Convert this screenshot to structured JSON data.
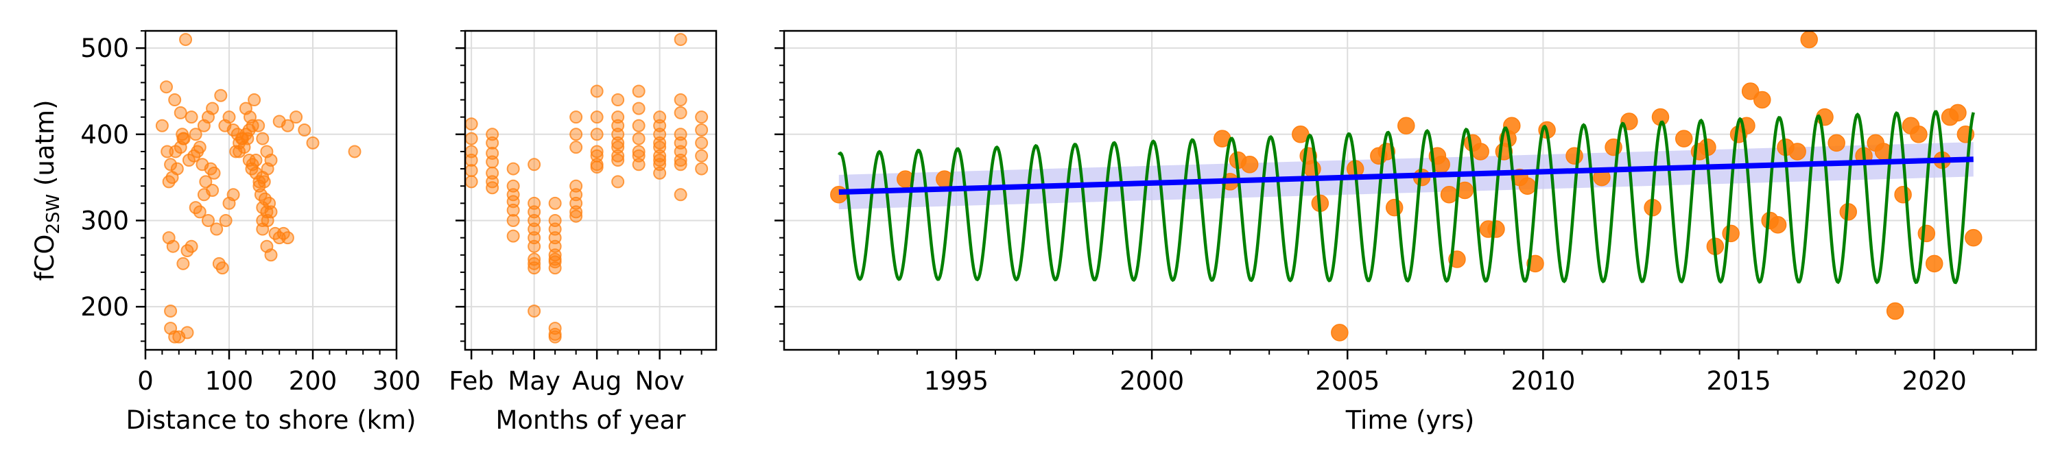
{
  "colors": {
    "observations": "#ff7f0e",
    "trend_line": "#0000ff",
    "trend_band": "#c8c8f5",
    "seasonal_fit": "#008000",
    "grid": "#dddddd",
    "axes": "#000000"
  },
  "chart_data": [
    {
      "type": "scatter",
      "xlabel": "Distance to shore (km)",
      "ylabel": {
        "main": "fCO",
        "sub": "2SW",
        "unit": " (uatm)"
      },
      "xlim": [
        0,
        300
      ],
      "ylim": [
        150,
        520
      ],
      "xticks": [
        0,
        100,
        200,
        300
      ],
      "yticks": [
        200,
        300,
        400,
        500
      ],
      "grid": true,
      "series": [
        {
          "x": [
            48,
            25,
            35,
            42,
            20,
            26,
            30,
            32,
            28,
            45,
            55,
            60,
            65,
            70,
            75,
            80,
            90,
            95,
            100,
            105,
            110,
            115,
            120,
            125,
            130,
            135,
            140,
            145,
            150,
            160,
            170,
            180,
            190,
            200,
            250,
            30,
            50,
            60,
            65,
            70,
            75,
            80,
            85,
            88,
            92,
            96,
            100,
            105,
            112,
            118,
            122,
            127,
            132,
            136,
            140,
            143,
            146,
            150,
            36,
            38,
            42,
            44,
            46,
            52,
            58,
            62,
            68,
            72,
            78,
            82,
            28,
            33,
            140,
            145,
            150,
            155,
            160,
            165,
            170,
            30,
            35,
            40,
            45,
            50,
            55,
            140,
            145,
            148,
            138,
            142,
            146,
            124,
            128,
            132,
            136,
            140,
            108,
            112,
            116,
            120,
            124,
            128
          ],
          "y": [
            510,
            455,
            440,
            425,
            410,
            380,
            365,
            350,
            345,
            395,
            420,
            400,
            385,
            410,
            420,
            430,
            445,
            410,
            420,
            405,
            400,
            395,
            430,
            420,
            440,
            410,
            395,
            380,
            370,
            415,
            410,
            420,
            405,
            390,
            380,
            195,
            170,
            315,
            310,
            330,
            300,
            335,
            290,
            250,
            245,
            300,
            320,
            330,
            380,
            385,
            395,
            360,
            370,
            345,
            350,
            325,
            300,
            310,
            380,
            360,
            385,
            400,
            395,
            370,
            375,
            380,
            365,
            345,
            360,
            355,
            280,
            270,
            290,
            270,
            260,
            285,
            280,
            285,
            280,
            175,
            165,
            165,
            250,
            265,
            270,
            300,
            310,
            320,
            330,
            345,
            360,
            370,
            365,
            355,
            340,
            315,
            380,
            390,
            395,
            400,
            405,
            410
          ]
        }
      ]
    },
    {
      "type": "scatter",
      "xlabel": "Months of year",
      "xlim": [
        0.7,
        12.7
      ],
      "ylim": [
        150,
        520
      ],
      "xticks": [
        1,
        4,
        7,
        10
      ],
      "xticklabels": [
        "Feb",
        "May",
        "Aug",
        "Nov"
      ],
      "yticks": [
        200,
        300,
        400,
        500
      ],
      "grid": true,
      "series": [
        {
          "x": [
            1,
            1,
            1,
            1,
            1,
            1,
            2,
            2,
            2,
            2,
            2,
            2,
            2,
            3,
            3,
            3,
            3,
            3,
            3,
            3,
            4,
            4,
            4,
            4,
            4,
            4,
            4,
            4,
            4,
            4,
            4,
            5,
            5,
            5,
            5,
            5,
            5,
            5,
            5,
            5,
            5,
            5,
            5,
            6,
            6,
            6,
            6,
            6,
            6,
            6,
            6,
            7,
            7,
            7,
            7,
            7,
            7,
            7,
            8,
            8,
            8,
            8,
            8,
            8,
            8,
            8,
            8,
            9,
            9,
            9,
            9,
            9,
            9,
            9,
            10,
            10,
            10,
            10,
            10,
            10,
            10,
            10,
            10,
            11,
            11,
            11,
            11,
            11,
            11,
            11,
            11,
            11,
            12,
            12,
            12,
            12,
            12
          ],
          "y": [
            412,
            395,
            380,
            370,
            358,
            345,
            400,
            390,
            378,
            368,
            355,
            345,
            338,
            360,
            340,
            330,
            322,
            312,
            300,
            282,
            365,
            320,
            310,
            300,
            290,
            280,
            270,
            255,
            250,
            245,
            195,
            320,
            300,
            290,
            280,
            270,
            260,
            252,
            245,
            175,
            168,
            165,
            255,
            420,
            400,
            385,
            340,
            330,
            320,
            310,
            305,
            450,
            420,
            400,
            380,
            375,
            365,
            362,
            440,
            420,
            410,
            400,
            390,
            385,
            375,
            370,
            345,
            450,
            430,
            410,
            395,
            380,
            375,
            365,
            420,
            410,
            400,
            390,
            385,
            375,
            370,
            365,
            355,
            510,
            440,
            425,
            400,
            390,
            380,
            370,
            365,
            330,
            420,
            405,
            390,
            375,
            360
          ]
        }
      ]
    },
    {
      "type": "line",
      "xlabel": "Time (yrs)",
      "xlim": [
        1990.6,
        2022.6
      ],
      "ylim": [
        150,
        520
      ],
      "xticks": [
        1995,
        2000,
        2005,
        2010,
        2015,
        2020
      ],
      "yticks": [
        200,
        300,
        400,
        500
      ],
      "grid": true,
      "trend": {
        "x": [
          1992.0,
          2021.0
        ],
        "y": [
          333,
          371
        ],
        "band_halfwidth": 20
      },
      "seasonal": {
        "x_start": 1992.0,
        "x_end": 2021.0,
        "base_start": 305,
        "base_end": 328,
        "amp_start": 73,
        "amp_end": 100,
        "phase": 0.82
      },
      "observations": {
        "x": [
          1992.0,
          1993.7,
          1994.7,
          2001.8,
          2002.0,
          2002.2,
          2002.5,
          2003.8,
          2004.0,
          2004.1,
          2004.3,
          2004.8,
          2005.2,
          2005.8,
          2006.0,
          2006.2,
          2006.5,
          2006.9,
          2007.3,
          2007.4,
          2007.6,
          2007.8,
          2008.0,
          2008.2,
          2008.4,
          2008.6,
          2008.8,
          2009.0,
          2009.1,
          2009.2,
          2009.4,
          2009.6,
          2009.8,
          2010.1,
          2010.8,
          2011.5,
          2011.8,
          2012.2,
          2012.8,
          2013.0,
          2013.6,
          2014.0,
          2014.2,
          2014.4,
          2014.8,
          2015.0,
          2015.2,
          2015.3,
          2015.6,
          2015.8,
          2016.0,
          2016.2,
          2016.5,
          2016.8,
          2017.2,
          2017.5,
          2017.8,
          2018.2,
          2018.5,
          2018.7,
          2019.0,
          2019.2,
          2019.4,
          2019.6,
          2019.8,
          2020.0,
          2020.2,
          2020.4,
          2020.6,
          2020.8,
          2021.0
        ],
        "y": [
          330,
          348,
          348,
          395,
          345,
          370,
          365,
          400,
          375,
          360,
          320,
          170,
          360,
          375,
          380,
          315,
          410,
          350,
          375,
          365,
          330,
          255,
          335,
          390,
          380,
          290,
          290,
          380,
          395,
          410,
          350,
          340,
          250,
          405,
          375,
          350,
          385,
          415,
          315,
          420,
          395,
          380,
          385,
          270,
          285,
          400,
          410,
          450,
          440,
          300,
          295,
          385,
          380,
          510,
          420,
          390,
          310,
          375,
          390,
          380,
          195,
          330,
          410,
          400,
          285,
          250,
          370,
          420,
          425,
          400,
          280
        ]
      }
    }
  ]
}
